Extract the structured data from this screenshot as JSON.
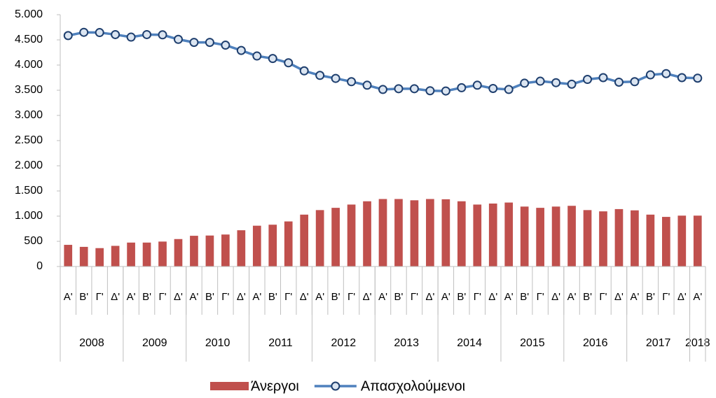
{
  "chart_data": {
    "type": "bar_line",
    "categories": [
      [
        "2008",
        "Α'"
      ],
      [
        "2008",
        "Β'"
      ],
      [
        "2008",
        "Γ'"
      ],
      [
        "2008",
        "Δ'"
      ],
      [
        "2009",
        "Α'"
      ],
      [
        "2009",
        "Β'"
      ],
      [
        "2009",
        "Γ'"
      ],
      [
        "2009",
        "Δ'"
      ],
      [
        "2010",
        "Α'"
      ],
      [
        "2010",
        "Β'"
      ],
      [
        "2010",
        "Γ'"
      ],
      [
        "2010",
        "Δ'"
      ],
      [
        "2011",
        "Α'"
      ],
      [
        "2011",
        "Β'"
      ],
      [
        "2011",
        "Γ'"
      ],
      [
        "2011",
        "Δ'"
      ],
      [
        "2012",
        "Α'"
      ],
      [
        "2012",
        "Β'"
      ],
      [
        "2012",
        "Γ'"
      ],
      [
        "2012",
        "Δ'"
      ],
      [
        "2013",
        "Α'"
      ],
      [
        "2013",
        "Β'"
      ],
      [
        "2013",
        "Γ'"
      ],
      [
        "2013",
        "Δ'"
      ],
      [
        "2014",
        "Α'"
      ],
      [
        "2014",
        "Β'"
      ],
      [
        "2014",
        "Γ'"
      ],
      [
        "2014",
        "Δ'"
      ],
      [
        "2015",
        "Α'"
      ],
      [
        "2015",
        "Β'"
      ],
      [
        "2015",
        "Γ'"
      ],
      [
        "2015",
        "Δ'"
      ],
      [
        "2016",
        "Α'"
      ],
      [
        "2016",
        "Β'"
      ],
      [
        "2016",
        "Γ'"
      ],
      [
        "2016",
        "Δ'"
      ],
      [
        "2017",
        "Α'"
      ],
      [
        "2017",
        "Β'"
      ],
      [
        "2017",
        "Γ'"
      ],
      [
        "2017",
        "Δ'"
      ],
      [
        "2018",
        "Α'"
      ]
    ],
    "series": [
      {
        "name": "Άνεργοι",
        "type": "bar",
        "color": "#c0504d",
        "values": [
          430,
          390,
          365,
          410,
          475,
          475,
          495,
          545,
          610,
          615,
          635,
          720,
          810,
          830,
          895,
          1030,
          1120,
          1165,
          1230,
          1295,
          1340,
          1340,
          1315,
          1340,
          1335,
          1295,
          1230,
          1250,
          1270,
          1190,
          1165,
          1190,
          1205,
          1120,
          1095,
          1140,
          1115,
          1030,
          985,
          1010,
          1010
        ]
      },
      {
        "name": "Απασχολούμενοι",
        "type": "line",
        "color": "#4f81bd",
        "marker_edge_color": "#1f3f6e",
        "marker_fill": "#dbe5f1",
        "values": [
          4585,
          4650,
          4645,
          4605,
          4555,
          4605,
          4600,
          4510,
          4450,
          4450,
          4395,
          4290,
          4180,
          4130,
          4045,
          3885,
          3795,
          3735,
          3670,
          3600,
          3515,
          3530,
          3530,
          3490,
          3485,
          3550,
          3600,
          3535,
          3515,
          3640,
          3680,
          3650,
          3620,
          3715,
          3750,
          3660,
          3670,
          3805,
          3830,
          3750,
          3740
        ]
      }
    ],
    "ylim": [
      0,
      5000
    ],
    "yticks": [
      0,
      500,
      {
        "value": 1000,
        "label": "1.000"
      },
      {
        "value": 1500,
        "label": "1.500"
      },
      {
        "value": 2000,
        "label": "2.000"
      },
      {
        "value": 2500,
        "label": "2.500"
      },
      {
        "value": 3000,
        "label": "3.000"
      },
      {
        "value": 3500,
        "label": "3.500"
      },
      {
        "value": 4000,
        "label": "4.000"
      },
      {
        "value": 4500,
        "label": "4.500"
      },
      {
        "value": 5000,
        "label": "5.000"
      }
    ],
    "grid": false,
    "legend": "bottom"
  }
}
